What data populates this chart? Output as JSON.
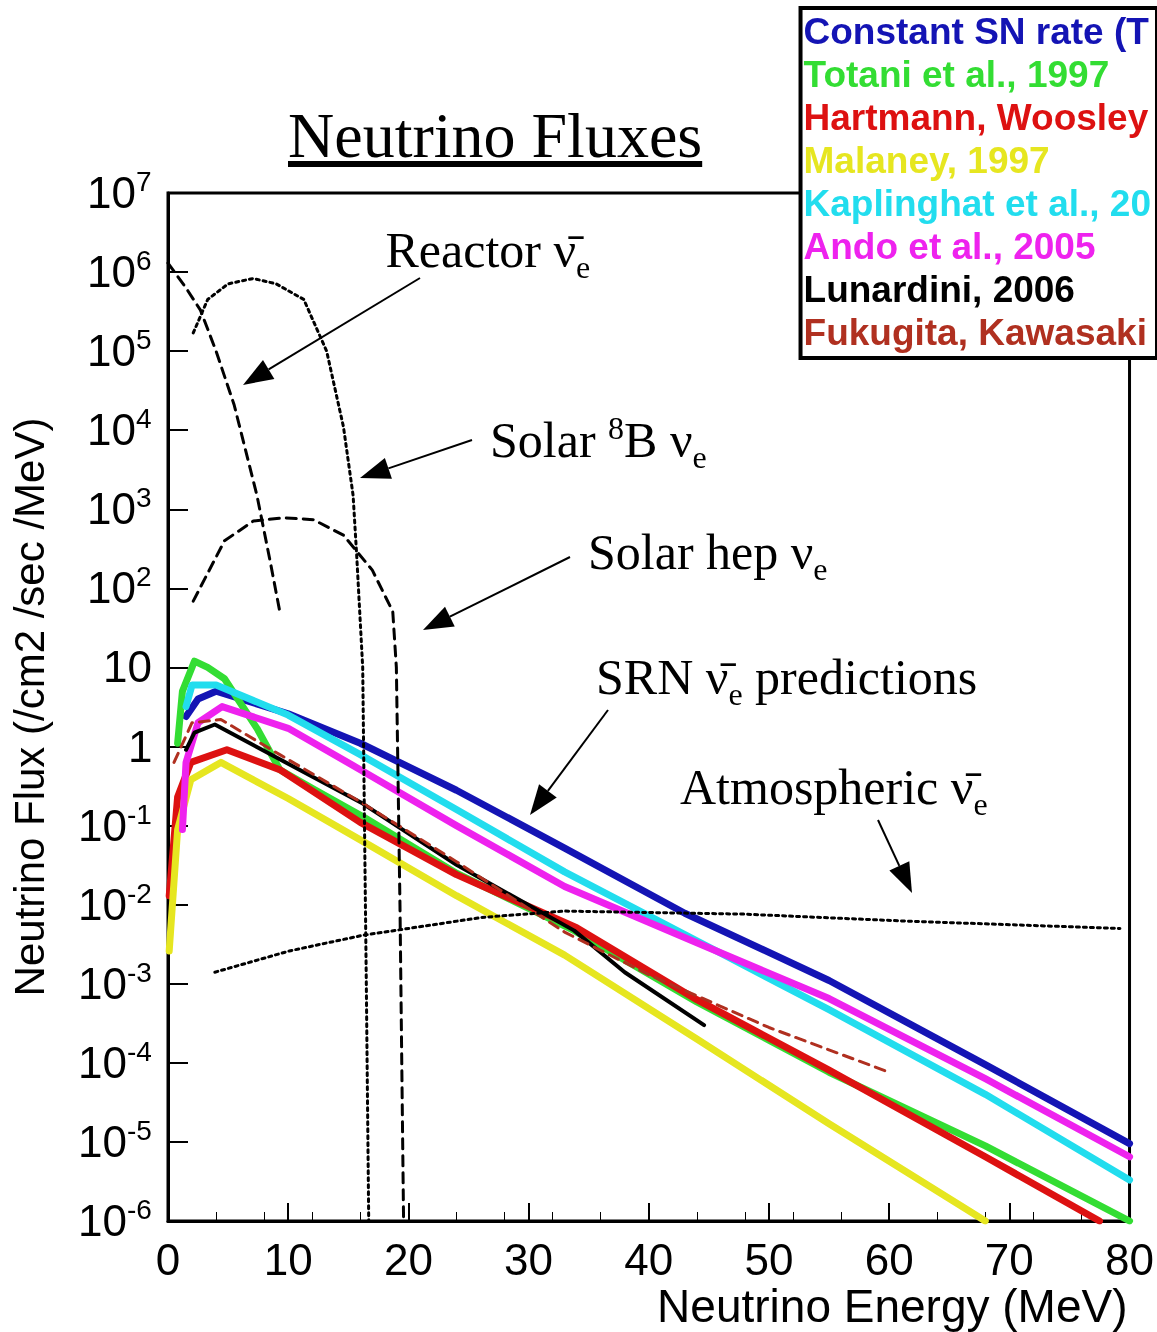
{
  "chart_data": {
    "type": "line",
    "title": "Neutrino Fluxes",
    "xlabel": "Neutrino Energy (MeV)",
    "ylabel": "Neutrino Flux (/cm2 /sec /MeV)",
    "xlim": [
      0,
      80
    ],
    "xticks": [
      0,
      10,
      20,
      30,
      40,
      50,
      60,
      70,
      80
    ],
    "ylim": [
      1e-06,
      10000000
    ],
    "yticks": [
      {
        "value": 1e-06,
        "label": "10$^{-6}$"
      },
      {
        "value": 1e-05,
        "label": "10$^{-5}$"
      },
      {
        "value": 0.0001,
        "label": "10$^{-4}$"
      },
      {
        "value": 0.001,
        "label": "10$^{-3}$"
      },
      {
        "value": 0.01,
        "label": "10$^{-2}$"
      },
      {
        "value": 0.1,
        "label": "10$^{-1}$"
      },
      1,
      10,
      {
        "value": 100,
        "label": "10$^{2}$"
      },
      {
        "value": 1000,
        "label": "10$^{3}$"
      },
      {
        "value": 10000,
        "label": "10$^{4}$"
      },
      {
        "value": 100000,
        "label": "10$^{5}$"
      },
      {
        "value": 1000000,
        "label": "10$^{6}$"
      },
      {
        "value": 10000000,
        "label": "10$^{7}$"
      }
    ],
    "log": "y",
    "grid": false,
    "legend": "top right",
    "marker": "none",
    "series": [
      {
        "name": "Constant SN rate (T",
        "color": "#1414b4",
        "line_style": "solid",
        "x": [
          1.5,
          2.5,
          4,
          10,
          16,
          24,
          33,
          43,
          55,
          68,
          80
        ],
        "values": [
          2.4,
          4.0,
          5.0,
          2.6,
          1.1,
          0.28,
          0.052,
          0.0078,
          0.0011,
          9.5e-05,
          9.5e-06
        ]
      },
      {
        "name": "Totani et al., 1997",
        "color": "#33dd33",
        "line_style": "solid",
        "x": [
          0.8,
          1.2,
          2.2,
          3.3,
          4.7,
          7.4,
          9.3,
          12.1,
          16.2,
          24,
          33.8,
          44,
          55,
          68,
          80
        ],
        "values": [
          1.1,
          5.0,
          12,
          10,
          7.2,
          1.7,
          0.51,
          0.29,
          0.13,
          0.025,
          0.0047,
          0.00059,
          7.6e-05,
          8.9e-06,
          1e-06
        ]
      },
      {
        "name": "Hartmann, Woosley",
        "color": "#dd1111",
        "line_style": "solid",
        "x": [
          0.1,
          0.8,
          1.9,
          4.9,
          9.3,
          16,
          24,
          34,
          44,
          55,
          68,
          77.5
        ],
        "values": [
          0.013,
          0.23,
          0.63,
          0.91,
          0.51,
          0.11,
          0.024,
          0.0051,
          0.00063,
          8.1e-05,
          6.5e-06,
          1e-06
        ]
      },
      {
        "name": "Malaney, 1997",
        "color": "#e6e620",
        "line_style": "solid",
        "x": [
          0.1,
          0.8,
          1.9,
          4.4,
          10,
          16,
          24,
          33,
          44,
          55,
          68
        ],
        "values": [
          0.0026,
          0.089,
          0.38,
          0.63,
          0.22,
          0.066,
          0.013,
          0.0023,
          0.0002,
          1.7e-05,
          1e-06
        ]
      },
      {
        "name": "Kaplinghat et al., 20",
        "color": "#22ddee",
        "line_style": "solid",
        "x": [
          1.5,
          2,
          4,
          10,
          16,
          24,
          33,
          44,
          55,
          68,
          80
        ],
        "values": [
          3.2,
          6.0,
          6.0,
          2.5,
          0.79,
          0.16,
          0.026,
          0.0035,
          0.00047,
          4e-05,
          3.3e-06
        ]
      },
      {
        "name": "Ando et al., 2005",
        "color": "#ee22ee",
        "line_style": "solid",
        "x": [
          1.2,
          1.5,
          2.5,
          4.5,
          10,
          16,
          24,
          33,
          44,
          55,
          68,
          80
        ],
        "values": [
          0.089,
          0.63,
          2.0,
          3.2,
          1.7,
          0.51,
          0.1,
          0.017,
          0.0033,
          0.00065,
          6.3e-05,
          6.5e-06
        ]
      },
      {
        "name": "Lunardini, 2006",
        "color": "#000000",
        "line_style": "solid",
        "x": [
          1.5,
          2.2,
          3.9,
          9.3,
          16.2,
          24,
          33.8,
          38,
          44.6
        ],
        "values": [
          0.91,
          1.5,
          1.9,
          0.69,
          0.19,
          0.032,
          0.0047,
          0.0014,
          0.0003
        ]
      },
      {
        "name": "Fukugita, Kawasaki",
        "color": "#b03020",
        "line_style": "dashed",
        "x": [
          0.5,
          2,
          4.4,
          9.3,
          16,
          24,
          33,
          40,
          50,
          60
        ],
        "values": [
          0.63,
          2.0,
          2.2,
          0.79,
          0.2,
          0.035,
          0.0045,
          0.0013,
          0.00028,
          7.6e-05
        ]
      },
      {
        "color": "#000000",
        "line_style": "dashed",
        "x": [
          0,
          1.5,
          2.7,
          4,
          5.5,
          7.4,
          8.5,
          9.3
        ],
        "values": [
          1300000,
          630000,
          330000,
          100000,
          21000,
          1500,
          220,
          51
        ]
      },
      {
        "color": "#000000",
        "line_style": "dotted",
        "x": [
          2.1,
          3.3,
          5,
          7.1,
          9,
          11.3,
          13.2,
          14.6,
          15.4,
          15.7,
          16.2,
          16.5,
          16.7
        ],
        "values": [
          170000,
          450000,
          710000,
          830000,
          710000,
          450000,
          100000,
          11000,
          1500,
          260,
          10,
          0.001,
          1e-06
        ]
      },
      {
        "color": "#000000",
        "line_style": "dashed",
        "x": [
          2.1,
          4.7,
          7.1,
          9.6,
          12.1,
          14.6,
          17,
          18.7,
          19.0,
          19.3,
          19.6
        ],
        "values": [
          69,
          400,
          710,
          780,
          740,
          470,
          170,
          51,
          10,
          0.01,
          1e-06
        ]
      },
      {
        "color": "#000000",
        "line_style": "dotted",
        "x": [
          3.9,
          10.1,
          16.2,
          26.1,
          33,
          47.9,
          61.4,
          79.2
        ],
        "values": [
          0.0014,
          0.0026,
          0.0041,
          0.0069,
          0.0083,
          0.0076,
          0.0062,
          0.005
        ]
      }
    ],
    "annotations": [
      "Reactor ν̄$_{e}$",
      "Solar $^{8}$B ν$_{e}$",
      "Solar hep ν$_{e}$",
      "SRN ν̄$_{e}$ predictions",
      "Atmospheric ν̄$_{e}$"
    ]
  }
}
